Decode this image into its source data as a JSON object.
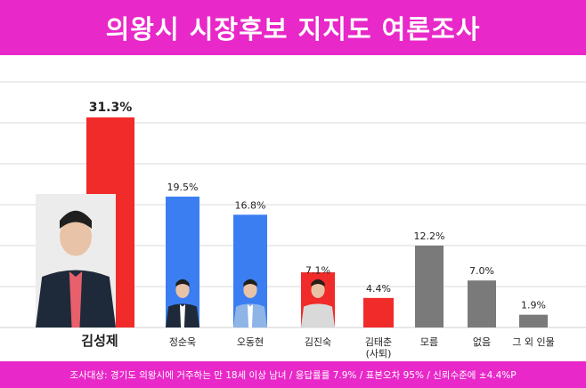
{
  "title": "의왕시 시장후보 지지도 여론조사",
  "footnote": "조사대상: 경기도 의왕시에 거주하는 만 18세 이상 남녀 / 응답률률 7.9% / 표본오차 95% / 신뢰수준에 ±4.4%P",
  "colors": {
    "header": "#e828c8",
    "red": "#f12a2a",
    "blue": "#3b7ef2",
    "gray": "#7a7a7a",
    "grid": "#d8d8d8"
  },
  "chart_data": {
    "type": "bar",
    "categories": [
      "김성제",
      "정순욱",
      "오동현",
      "김진숙",
      "김태춘\n(사퇴)",
      "모름",
      "없음",
      "그 외 인물"
    ],
    "values": [
      31.3,
      19.5,
      16.8,
      7.1,
      4.4,
      12.2,
      7.0,
      1.9
    ],
    "value_labels": [
      "31.3%",
      "19.5%",
      "16.8%",
      "7.1%",
      "4.4%",
      "12.2%",
      "7.0%",
      "1.9%"
    ],
    "bar_colors": [
      "red",
      "blue",
      "blue",
      "red",
      "red",
      "gray",
      "gray",
      "gray"
    ],
    "has_photo": [
      true,
      true,
      true,
      true,
      false,
      false,
      false,
      false
    ],
    "ylim": [
      0,
      35
    ],
    "grid": true
  }
}
